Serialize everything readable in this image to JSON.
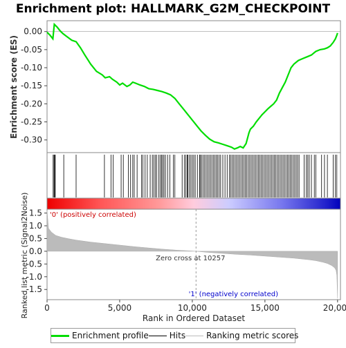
{
  "chart_data": {
    "type": "line",
    "title": "Enrichment plot: HALLMARK_G2M_CHECKPOINT",
    "top_panel": {
      "ylabel": "Enrichment score (ES)",
      "ylim": [
        -0.335,
        0.03
      ],
      "yticks": [
        0.0,
        -0.05,
        -0.1,
        -0.15,
        -0.2,
        -0.25,
        -0.3
      ],
      "ytick_labels": [
        "0.00",
        "-0.05",
        "-0.10",
        "-0.15",
        "-0.20",
        "-0.25",
        "-0.30"
      ],
      "series": [
        {
          "name": "Enrichment profile",
          "color": "#00dd00",
          "x": [
            0,
            200,
            400,
            500,
            700,
            900,
            1100,
            1300,
            1500,
            1700,
            2000,
            2300,
            2600,
            3000,
            3400,
            3800,
            4000,
            4300,
            4500,
            4800,
            5000,
            5200,
            5500,
            5700,
            5900,
            6100,
            6400,
            6700,
            7000,
            7300,
            7600,
            7900,
            8200,
            8500,
            8800,
            9100,
            9400,
            9700,
            10000,
            10300,
            10600,
            10900,
            11200,
            11500,
            11800,
            12100,
            12400,
            12700,
            12900,
            13100,
            13300,
            13500,
            13700,
            13800,
            13900,
            14000,
            14200,
            14400,
            14600,
            14800,
            15000,
            15200,
            15400,
            15600,
            15800,
            16000,
            16200,
            16400,
            16600,
            16800,
            17000,
            17300,
            17600,
            17900,
            18200,
            18500,
            18800,
            19100,
            19300,
            19500,
            19700,
            19850,
            19950,
            20000
          ],
          "y": [
            -0.002,
            -0.01,
            -0.02,
            0.02,
            0.012,
            0.002,
            -0.006,
            -0.012,
            -0.018,
            -0.024,
            -0.028,
            -0.045,
            -0.065,
            -0.09,
            -0.11,
            -0.12,
            -0.128,
            -0.125,
            -0.132,
            -0.14,
            -0.148,
            -0.143,
            -0.152,
            -0.148,
            -0.14,
            -0.143,
            -0.148,
            -0.152,
            -0.158,
            -0.16,
            -0.163,
            -0.166,
            -0.17,
            -0.175,
            -0.185,
            -0.2,
            -0.215,
            -0.23,
            -0.245,
            -0.26,
            -0.275,
            -0.287,
            -0.298,
            -0.305,
            -0.308,
            -0.312,
            -0.316,
            -0.32,
            -0.325,
            -0.322,
            -0.318,
            -0.322,
            -0.31,
            -0.295,
            -0.28,
            -0.27,
            -0.262,
            -0.25,
            -0.24,
            -0.23,
            -0.222,
            -0.214,
            -0.207,
            -0.2,
            -0.19,
            -0.17,
            -0.155,
            -0.14,
            -0.12,
            -0.1,
            -0.09,
            -0.08,
            -0.075,
            -0.07,
            -0.065,
            -0.055,
            -0.05,
            -0.048,
            -0.045,
            -0.04,
            -0.03,
            -0.02,
            -0.01,
            -0.004
          ]
        }
      ]
    },
    "hits_panel": {
      "positions": [
        420,
        480,
        530,
        560,
        1150,
        2000,
        3950,
        4400,
        4550,
        5100,
        5250,
        5600,
        5750,
        5900,
        6000,
        6200,
        6500,
        6600,
        6750,
        6900,
        7100,
        7250,
        7350,
        7450,
        7550,
        7700,
        7800,
        7880,
        7960,
        8050,
        8150,
        8300,
        8450,
        8700,
        8800,
        9300,
        9450,
        9550,
        9650,
        9700,
        9800,
        9900,
        10000,
        10100,
        10200,
        10350,
        10500,
        10550,
        10650,
        10750,
        10850,
        10950,
        11050,
        11150,
        11250,
        11350,
        11450,
        11550,
        11650,
        11750,
        11850,
        11950,
        12100,
        12250,
        12400,
        12550,
        12650,
        12750,
        12850,
        12950,
        13050,
        13150,
        13250,
        13350,
        13450,
        13550,
        13650,
        13750,
        13850,
        13950,
        14050,
        14150,
        14250,
        14350,
        14450,
        14550,
        14650,
        14750,
        14850,
        14950,
        15050,
        15150,
        15250,
        15350,
        15450,
        15550,
        15650,
        15750,
        15850,
        15950,
        16050,
        16150,
        16250,
        16350,
        16450,
        16550,
        16650,
        16750,
        16850,
        16950,
        17050,
        17150,
        17250,
        17350,
        17700,
        17850,
        17950,
        18050,
        18200,
        18400,
        18500,
        18900,
        19100,
        19300,
        19700,
        19850,
        19950
      ]
    },
    "ranked_panel": {
      "ylabel": "Ranked list metric (Signal2Noise)",
      "xlabel": "Rank in Ordered Dataset",
      "ylim": [
        -1.9,
        1.65
      ],
      "yticks": [
        1.5,
        1.0,
        0.5,
        0.0,
        -0.5,
        -1.0,
        -1.5
      ],
      "ytick_labels": [
        "1.5",
        "1.0",
        "0.5",
        "0.0",
        "-0.5",
        "-1.0",
        "-1.5"
      ],
      "xlim": [
        0,
        20200
      ],
      "xticks": [
        0,
        5000,
        10000,
        15000,
        20000
      ],
      "xtick_labels": [
        "0",
        "5,000",
        "10,000",
        "15,000",
        "20,000"
      ],
      "metric_x": [
        0,
        100,
        300,
        600,
        1000,
        1500,
        2000,
        3000,
        4000,
        5000,
        6000,
        7000,
        8000,
        9000,
        10000,
        10257,
        11000,
        12000,
        13000,
        14000,
        15000,
        16000,
        17000,
        17500,
        18000,
        18500,
        19000,
        19300,
        19600,
        19800,
        19900,
        19950,
        20000
      ],
      "metric_y": [
        1.6,
        0.9,
        0.75,
        0.62,
        0.55,
        0.49,
        0.44,
        0.36,
        0.3,
        0.24,
        0.18,
        0.13,
        0.08,
        0.04,
        0.01,
        0.0,
        -0.04,
        -0.08,
        -0.12,
        -0.15,
        -0.19,
        -0.23,
        -0.27,
        -0.3,
        -0.33,
        -0.37,
        -0.43,
        -0.48,
        -0.56,
        -0.65,
        -0.75,
        -0.95,
        -1.85
      ],
      "zero_cross_label": "Zero cross at 10257",
      "zero_cross": 10257,
      "pos_label": "'0' (positively correlated)",
      "neg_label": "'1' (negatively correlated)"
    },
    "legend": {
      "items": [
        {
          "label": "Enrichment profile",
          "color": "#00dd00"
        },
        {
          "label": "Hits",
          "color": "#000000"
        },
        {
          "label": "Ranking metric scores",
          "color": "#bbbbbb"
        }
      ]
    }
  }
}
